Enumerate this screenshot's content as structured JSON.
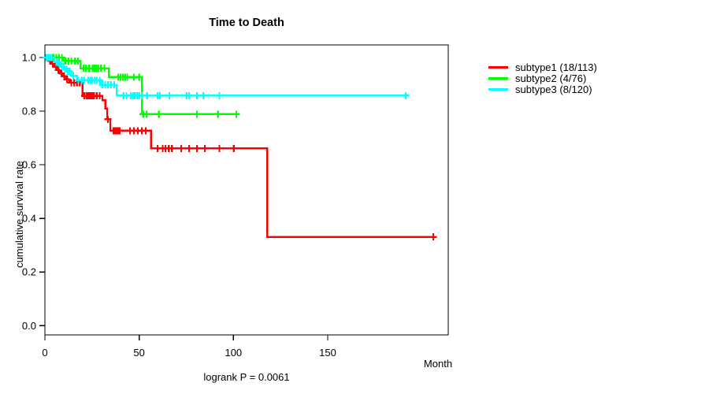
{
  "title": "Time to Death",
  "x_axis": {
    "label": "Month",
    "ticks": [
      "0",
      "50",
      "100",
      "150"
    ],
    "tick_values": [
      0,
      50,
      100,
      150
    ]
  },
  "y_axis": {
    "label": "cumulative survival rate",
    "ticks": [
      "1.0",
      "0.8",
      "0.6",
      "0.4",
      "0.2",
      "0.0"
    ],
    "tick_values": [
      1.0,
      0.8,
      0.6,
      0.4,
      0.2,
      0.0
    ]
  },
  "footer": "logrank P = 0.0061",
  "legend": [
    {
      "label": "subtype1 (18/113)",
      "color": "#ff0000"
    },
    {
      "label": "subtype2 (4/76)",
      "color": "#00ff00"
    },
    {
      "label": "subtype3 (8/120)",
      "color": "#00ffff"
    }
  ],
  "chart_data": {
    "type": "line",
    "subtype": "kaplan-meier-step",
    "title": "Time to Death",
    "xlabel": "Month",
    "ylabel": "cumulative survival rate",
    "annotation": "logrank P = 0.0061",
    "xlim": [
      0,
      214
    ],
    "ylim": [
      0.0,
      1.0
    ],
    "grid": false,
    "legend_position": "right-outside",
    "series": [
      {
        "name": "subtype1 (18/113)",
        "color": "#ff0000",
        "steps": [
          [
            0,
            1.0
          ],
          [
            2,
            0.988
          ],
          [
            3.5,
            0.977
          ],
          [
            5,
            0.965
          ],
          [
            6.5,
            0.953
          ],
          [
            8,
            0.941
          ],
          [
            9.5,
            0.93
          ],
          [
            11,
            0.918
          ],
          [
            13,
            0.906
          ],
          [
            20,
            0.857
          ],
          [
            30.5,
            0.84
          ],
          [
            32,
            0.81
          ],
          [
            33,
            0.77
          ],
          [
            34.7,
            0.727
          ],
          [
            56.3,
            0.661
          ],
          [
            118,
            0.331
          ]
        ],
        "end_month": 206.3,
        "censors": [
          [
            2.8,
            0.988
          ],
          [
            4.2,
            0.977
          ],
          [
            5.8,
            0.965
          ],
          [
            7.2,
            0.953
          ],
          [
            8.8,
            0.941
          ],
          [
            10.2,
            0.93
          ],
          [
            11.8,
            0.918
          ],
          [
            14,
            0.906
          ],
          [
            15.5,
            0.906
          ],
          [
            17,
            0.906
          ],
          [
            18.5,
            0.906
          ],
          [
            21,
            0.857
          ],
          [
            22.2,
            0.857
          ],
          [
            23.1,
            0.857
          ],
          [
            24,
            0.857
          ],
          [
            25,
            0.857
          ],
          [
            26,
            0.857
          ],
          [
            27.5,
            0.857
          ],
          [
            29,
            0.857
          ],
          [
            33.4,
            0.77
          ],
          [
            36.3,
            0.727
          ],
          [
            37.2,
            0.727
          ],
          [
            38,
            0.727
          ],
          [
            38.9,
            0.727
          ],
          [
            39.7,
            0.727
          ],
          [
            45.1,
            0.727
          ],
          [
            47.2,
            0.727
          ],
          [
            49.3,
            0.727
          ],
          [
            51.4,
            0.727
          ],
          [
            53.5,
            0.727
          ],
          [
            59.8,
            0.661
          ],
          [
            62.5,
            0.661
          ],
          [
            63.9,
            0.661
          ],
          [
            65.7,
            0.661
          ],
          [
            67.4,
            0.661
          ],
          [
            72.3,
            0.661
          ],
          [
            76.5,
            0.661
          ],
          [
            80.6,
            0.661
          ],
          [
            84.8,
            0.661
          ],
          [
            92.5,
            0.661
          ],
          [
            100.2,
            0.661
          ],
          [
            206,
            0.331
          ]
        ]
      },
      {
        "name": "subtype2 (4/76)",
        "color": "#00ff00",
        "steps": [
          [
            0,
            1.0
          ],
          [
            9.6,
            0.987
          ],
          [
            18.9,
            0.96
          ],
          [
            34,
            0.927
          ],
          [
            51.5,
            0.789
          ]
        ],
        "end_month": 102.2,
        "censors": [
          [
            1,
            1.0
          ],
          [
            2,
            1.0
          ],
          [
            3,
            1.0
          ],
          [
            4.5,
            1.0
          ],
          [
            6,
            1.0
          ],
          [
            7.5,
            1.0
          ],
          [
            9,
            1.0
          ],
          [
            11,
            0.987
          ],
          [
            12.5,
            0.987
          ],
          [
            14,
            0.987
          ],
          [
            16,
            0.987
          ],
          [
            17.5,
            0.987
          ],
          [
            20.5,
            0.96
          ],
          [
            21.8,
            0.96
          ],
          [
            23.5,
            0.96
          ],
          [
            25.4,
            0.96
          ],
          [
            26.3,
            0.96
          ],
          [
            27.3,
            0.96
          ],
          [
            28.4,
            0.96
          ],
          [
            29.8,
            0.96
          ],
          [
            31.5,
            0.96
          ],
          [
            38.9,
            0.927
          ],
          [
            40.1,
            0.927
          ],
          [
            41.4,
            0.927
          ],
          [
            42.6,
            0.927
          ],
          [
            43.7,
            0.927
          ],
          [
            47.2,
            0.927
          ],
          [
            50,
            0.927
          ],
          [
            52.1,
            0.789
          ],
          [
            53.9,
            0.789
          ],
          [
            60.5,
            0.789
          ],
          [
            80.6,
            0.789
          ],
          [
            91.8,
            0.789
          ],
          [
            101.5,
            0.789
          ]
        ]
      },
      {
        "name": "subtype3 (8/120)",
        "color": "#00ffff",
        "steps": [
          [
            0,
            1.0
          ],
          [
            5,
            0.983
          ],
          [
            8,
            0.966
          ],
          [
            11,
            0.949
          ],
          [
            14,
            0.932
          ],
          [
            17,
            0.915
          ],
          [
            30,
            0.898
          ],
          [
            38.2,
            0.858
          ]
        ],
        "end_month": 191.4,
        "censors": [
          [
            0.6,
            1.0
          ],
          [
            1.3,
            1.0
          ],
          [
            2,
            1.0
          ],
          [
            2.7,
            1.0
          ],
          [
            3.5,
            1.0
          ],
          [
            6,
            0.983
          ],
          [
            7,
            0.983
          ],
          [
            9,
            0.966
          ],
          [
            10,
            0.966
          ],
          [
            12,
            0.949
          ],
          [
            13,
            0.949
          ],
          [
            15,
            0.932
          ],
          [
            17.8,
            0.915
          ],
          [
            19.5,
            0.915
          ],
          [
            20.9,
            0.915
          ],
          [
            23,
            0.915
          ],
          [
            24,
            0.915
          ],
          [
            25,
            0.915
          ],
          [
            26.4,
            0.915
          ],
          [
            27.6,
            0.915
          ],
          [
            29,
            0.915
          ],
          [
            30.4,
            0.898
          ],
          [
            32,
            0.898
          ],
          [
            33.5,
            0.898
          ],
          [
            35,
            0.898
          ],
          [
            36.8,
            0.898
          ],
          [
            41.7,
            0.858
          ],
          [
            43.3,
            0.858
          ],
          [
            45.5,
            0.858
          ],
          [
            46.9,
            0.858
          ],
          [
            47.9,
            0.858
          ],
          [
            48.9,
            0.858
          ],
          [
            50,
            0.858
          ],
          [
            51.4,
            0.858
          ],
          [
            54.2,
            0.858
          ],
          [
            59.7,
            0.858
          ],
          [
            61,
            0.858
          ],
          [
            66,
            0.858
          ],
          [
            75.1,
            0.858
          ],
          [
            76.5,
            0.858
          ],
          [
            80.6,
            0.858
          ],
          [
            84.1,
            0.858
          ],
          [
            92.5,
            0.858
          ],
          [
            191.4,
            0.858
          ]
        ]
      }
    ]
  }
}
